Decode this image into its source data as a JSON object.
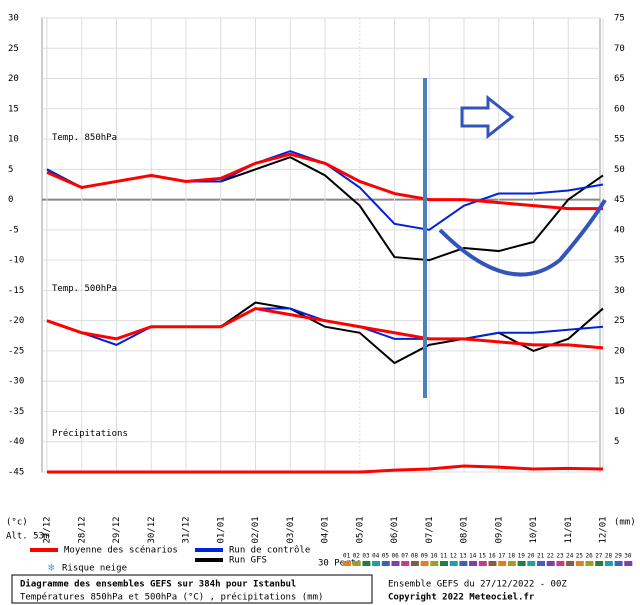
{
  "chart_data": {
    "type": "line",
    "y_unit": "(°c)",
    "y2_unit": "(mm)",
    "altitude": "Alt. 53m",
    "categories": [
      "27/12",
      "28/12",
      "29/12",
      "30/12",
      "31/12",
      "01/01",
      "02/01",
      "03/01",
      "04/01",
      "05/01",
      "06/01",
      "07/01",
      "08/01",
      "09/01",
      "10/01",
      "11/01",
      "12/01"
    ],
    "ylim": [
      -45,
      30
    ],
    "yticks": [
      -45,
      -40,
      -35,
      -30,
      -25,
      -20,
      -15,
      -10,
      -5,
      0,
      5,
      10,
      15,
      20,
      25,
      30
    ],
    "y2lim": [
      0,
      75
    ],
    "y2ticks": [
      5,
      10,
      15,
      20,
      25,
      30,
      35,
      40,
      45,
      50,
      55,
      60,
      65,
      70,
      75
    ],
    "legend": [
      {
        "name": "Moyenne des scénarios",
        "color": "#ff0000"
      },
      {
        "name": "Run de contrôle",
        "color": "#0022dd"
      },
      {
        "name": "Run GFS",
        "color": "#000000"
      }
    ],
    "panels": [
      {
        "label": "Temp. 850hPa",
        "series": [
          {
            "values": [
              4.5,
              2,
              3,
              4,
              3,
              3.5,
              6,
              7.5,
              6,
              3,
              1,
              0,
              0,
              -0.5,
              -1,
              -1.5,
              -1.5
            ]
          },
          {
            "values": [
              5,
              2,
              3,
              4,
              3,
              3,
              6,
              8,
              6,
              2,
              -4,
              -5,
              -1,
              1,
              1,
              1.5,
              2.5
            ]
          },
          {
            "values": [
              5,
              2,
              3,
              4,
              3,
              3,
              5,
              7,
              4,
              -1,
              -9.5,
              -10,
              -8,
              -8.5,
              -7,
              0,
              4
            ]
          }
        ]
      },
      {
        "label": "Temp. 500hPa",
        "series": [
          {
            "values": [
              -20,
              -22,
              -23,
              -21,
              -21,
              -21,
              -18,
              -19,
              -20,
              -21,
              -22,
              -23,
              -23,
              -23.5,
              -24,
              -24,
              -24.5
            ]
          },
          {
            "values": [
              -20,
              -22,
              -24,
              -21,
              -21,
              -21,
              -18,
              -18,
              -20,
              -21,
              -23,
              -23,
              -23,
              -22,
              -22,
              -21.5,
              -21
            ]
          },
          {
            "values": [
              -20,
              -22,
              -23,
              -21,
              -21,
              -21,
              -17,
              -18,
              -21,
              -22,
              -27,
              -24,
              -23,
              -22,
              -25,
              -23,
              -18
            ]
          }
        ]
      }
    ],
    "precip": {
      "label": "Précipitations",
      "values": [
        0,
        0,
        0,
        0,
        0,
        0,
        0,
        0,
        0,
        0,
        0.3,
        0.5,
        1,
        0.8,
        0.5,
        0.6,
        0.5
      ]
    },
    "snow_label": "Risque neige",
    "perts_label": "30 Perts.",
    "perts": [
      "01",
      "02",
      "03",
      "04",
      "05",
      "06",
      "07",
      "08",
      "09",
      "10",
      "11",
      "12",
      "13",
      "14",
      "15",
      "16",
      "17",
      "18",
      "19",
      "20",
      "21",
      "22",
      "23",
      "24",
      "25",
      "26",
      "27",
      "28",
      "29",
      "30"
    ],
    "pert_colors": [
      "#e08020",
      "#a0a020",
      "#208040",
      "#20a0a0",
      "#4060c0",
      "#8040a0",
      "#c04080",
      "#806040"
    ],
    "footer_title": "Diagramme des ensembles GEFS sur 384h pour Istanbul",
    "footer_sub": "Températures 850hPa et 500hPa (°C) , précipitations (mm)",
    "run_info": "Ensemble GEFS du 27/12/2022 - 00Z",
    "copyright": "Copyright 2022 Meteociel.fr"
  }
}
